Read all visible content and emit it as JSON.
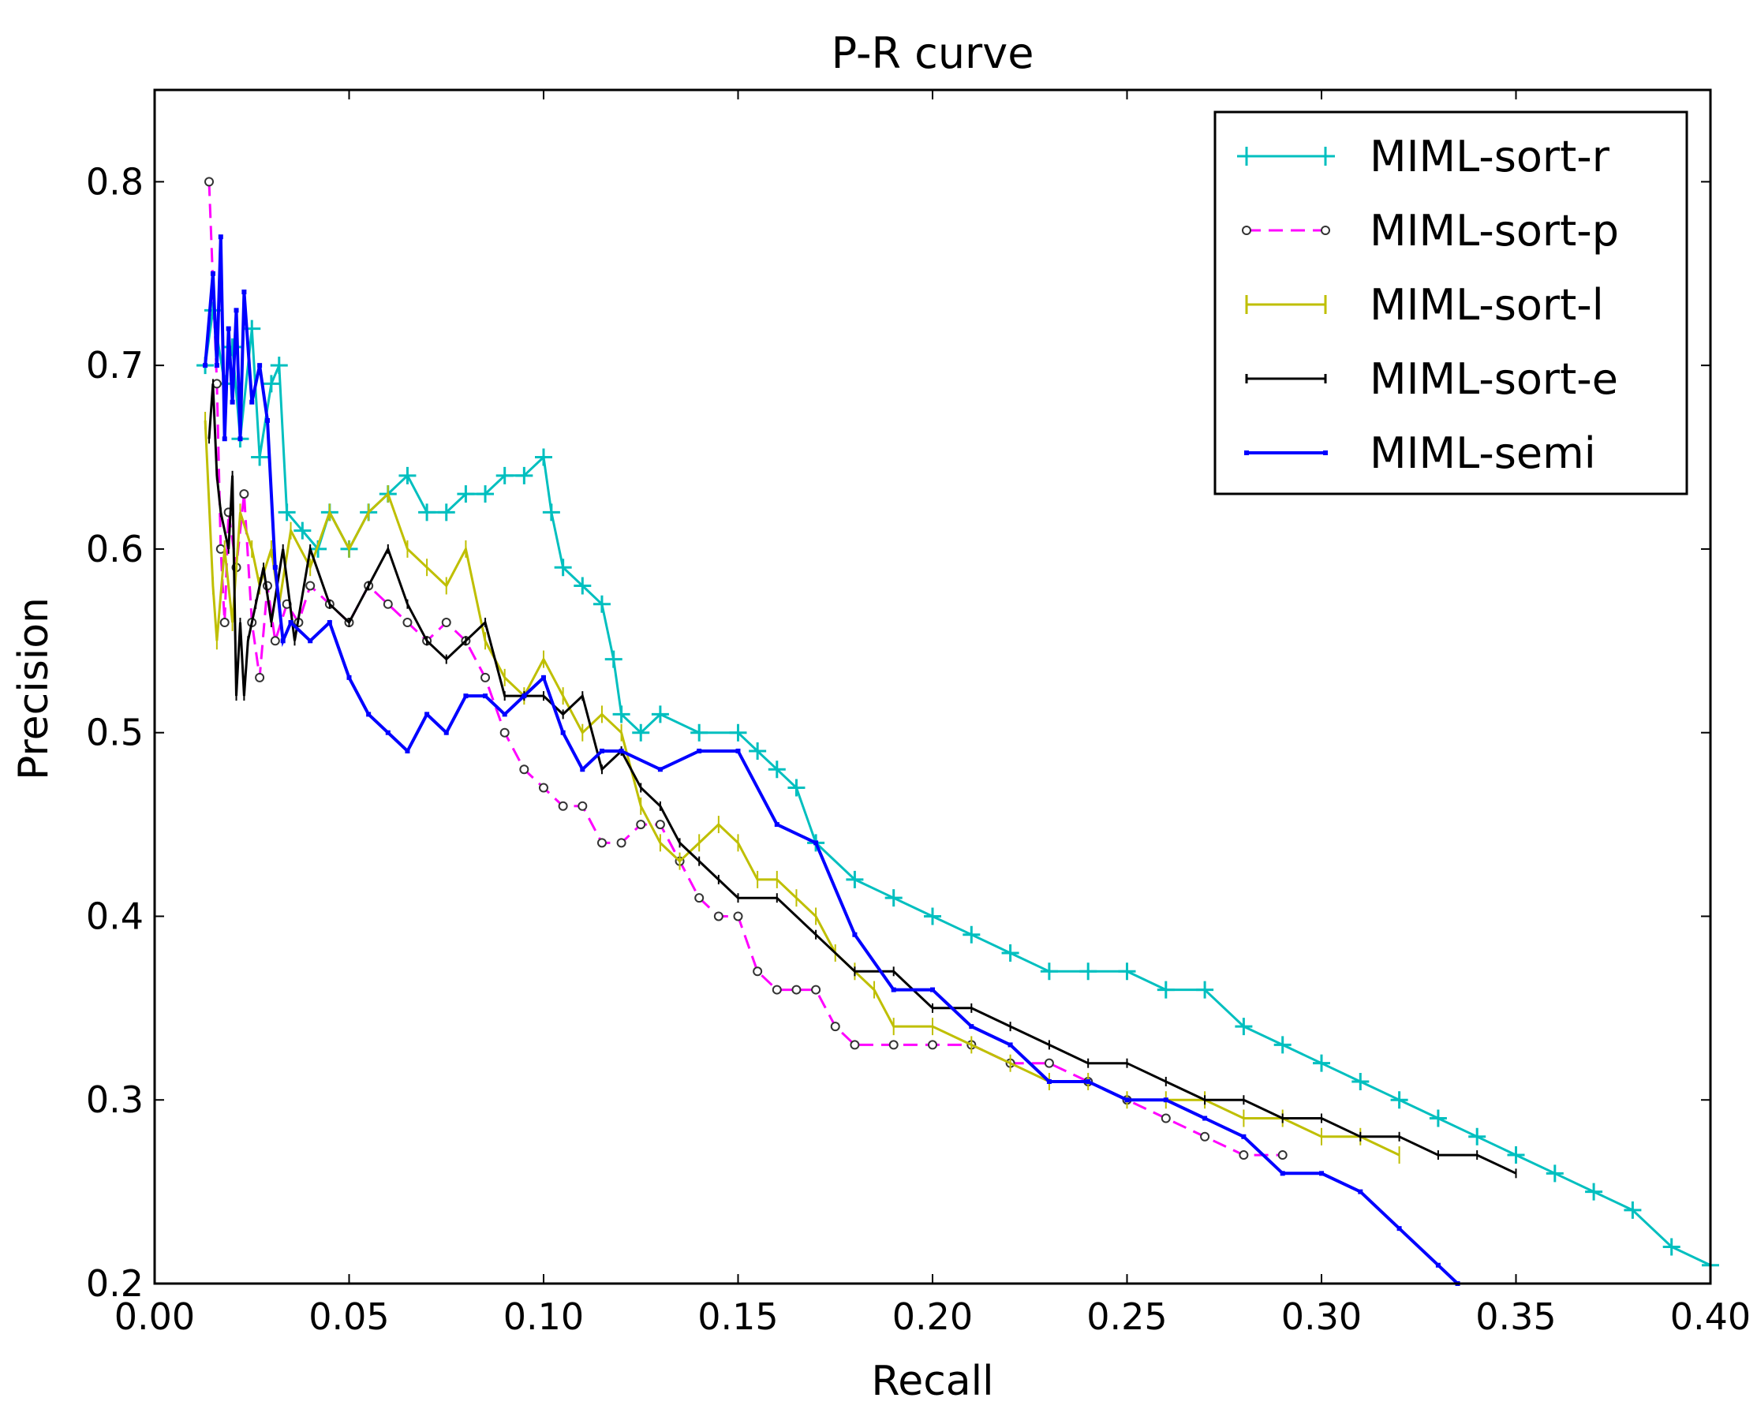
{
  "chart_data": {
    "type": "line",
    "title": "P-R curve",
    "xlabel": "Recall",
    "ylabel": "Precision",
    "xlim": [
      0.0,
      0.4
    ],
    "ylim": [
      0.2,
      0.85
    ],
    "grid": false,
    "legend_position": "top-right",
    "xticks": [
      0.0,
      0.05,
      0.1,
      0.15,
      0.2,
      0.25,
      0.3,
      0.35,
      0.4
    ],
    "xtick_labels": [
      "0.00",
      "0.05",
      "0.10",
      "0.15",
      "0.20",
      "0.25",
      "0.30",
      "0.35",
      "0.40"
    ],
    "yticks": [
      0.2,
      0.3,
      0.4,
      0.5,
      0.6,
      0.7,
      0.8
    ],
    "ytick_labels": [
      "0.2",
      "0.3",
      "0.4",
      "0.5",
      "0.6",
      "0.7",
      "0.8"
    ],
    "series": [
      {
        "name": "MIML-sort-r",
        "color": "#00bfbf",
        "marker": "plus",
        "dash": "solid",
        "x": [
          0.013,
          0.015,
          0.018,
          0.02,
          0.022,
          0.025,
          0.027,
          0.03,
          0.032,
          0.034,
          0.038,
          0.042,
          0.045,
          0.05,
          0.055,
          0.06,
          0.065,
          0.07,
          0.075,
          0.08,
          0.085,
          0.09,
          0.095,
          0.1,
          0.102,
          0.105,
          0.11,
          0.115,
          0.118,
          0.12,
          0.125,
          0.13,
          0.14,
          0.15,
          0.155,
          0.16,
          0.165,
          0.17,
          0.18,
          0.19,
          0.2,
          0.21,
          0.22,
          0.23,
          0.24,
          0.25,
          0.26,
          0.27,
          0.28,
          0.29,
          0.3,
          0.31,
          0.32,
          0.33,
          0.34,
          0.35,
          0.36,
          0.37,
          0.38,
          0.39,
          0.4
        ],
        "y": [
          0.7,
          0.73,
          0.69,
          0.71,
          0.66,
          0.72,
          0.65,
          0.69,
          0.7,
          0.62,
          0.61,
          0.6,
          0.62,
          0.6,
          0.62,
          0.63,
          0.64,
          0.62,
          0.62,
          0.63,
          0.63,
          0.64,
          0.64,
          0.65,
          0.62,
          0.59,
          0.58,
          0.57,
          0.54,
          0.51,
          0.5,
          0.51,
          0.5,
          0.5,
          0.49,
          0.48,
          0.47,
          0.44,
          0.42,
          0.41,
          0.4,
          0.39,
          0.38,
          0.37,
          0.37,
          0.37,
          0.36,
          0.36,
          0.34,
          0.33,
          0.32,
          0.31,
          0.3,
          0.29,
          0.28,
          0.27,
          0.26,
          0.25,
          0.24,
          0.22,
          0.21
        ]
      },
      {
        "name": "MIML-sort-p",
        "color": "#ff00ff",
        "marker": "circle",
        "dash": "dashed",
        "x": [
          0.014,
          0.016,
          0.017,
          0.018,
          0.019,
          0.021,
          0.023,
          0.025,
          0.027,
          0.029,
          0.031,
          0.034,
          0.037,
          0.04,
          0.045,
          0.05,
          0.055,
          0.06,
          0.065,
          0.07,
          0.075,
          0.08,
          0.085,
          0.09,
          0.095,
          0.1,
          0.105,
          0.11,
          0.115,
          0.12,
          0.125,
          0.13,
          0.135,
          0.14,
          0.145,
          0.15,
          0.155,
          0.16,
          0.165,
          0.17,
          0.175,
          0.18,
          0.19,
          0.2,
          0.21,
          0.22,
          0.23,
          0.24,
          0.25,
          0.26,
          0.27,
          0.28,
          0.29
        ],
        "y": [
          0.8,
          0.69,
          0.6,
          0.56,
          0.62,
          0.59,
          0.63,
          0.56,
          0.53,
          0.58,
          0.55,
          0.57,
          0.56,
          0.58,
          0.57,
          0.56,
          0.58,
          0.57,
          0.56,
          0.55,
          0.56,
          0.55,
          0.53,
          0.5,
          0.48,
          0.47,
          0.46,
          0.46,
          0.44,
          0.44,
          0.45,
          0.45,
          0.43,
          0.41,
          0.4,
          0.4,
          0.37,
          0.36,
          0.36,
          0.36,
          0.34,
          0.33,
          0.33,
          0.33,
          0.33,
          0.32,
          0.32,
          0.31,
          0.3,
          0.29,
          0.28,
          0.27,
          0.27
        ]
      },
      {
        "name": "MIML-sort-l",
        "color": "#bfbf00",
        "marker": "vline",
        "dash": "solid",
        "x": [
          0.013,
          0.015,
          0.016,
          0.018,
          0.02,
          0.022,
          0.025,
          0.027,
          0.03,
          0.032,
          0.035,
          0.04,
          0.045,
          0.05,
          0.055,
          0.06,
          0.065,
          0.07,
          0.075,
          0.08,
          0.085,
          0.09,
          0.095,
          0.1,
          0.105,
          0.11,
          0.115,
          0.12,
          0.125,
          0.13,
          0.135,
          0.14,
          0.145,
          0.15,
          0.155,
          0.16,
          0.165,
          0.17,
          0.175,
          0.18,
          0.185,
          0.19,
          0.2,
          0.21,
          0.22,
          0.23,
          0.24,
          0.25,
          0.26,
          0.27,
          0.28,
          0.29,
          0.3,
          0.31,
          0.32
        ],
        "y": [
          0.67,
          0.58,
          0.55,
          0.6,
          0.56,
          0.62,
          0.6,
          0.58,
          0.6,
          0.57,
          0.61,
          0.59,
          0.62,
          0.6,
          0.62,
          0.63,
          0.6,
          0.59,
          0.58,
          0.6,
          0.55,
          0.53,
          0.52,
          0.54,
          0.52,
          0.5,
          0.51,
          0.5,
          0.46,
          0.44,
          0.43,
          0.44,
          0.45,
          0.44,
          0.42,
          0.42,
          0.41,
          0.4,
          0.38,
          0.37,
          0.36,
          0.34,
          0.34,
          0.33,
          0.32,
          0.31,
          0.31,
          0.3,
          0.3,
          0.3,
          0.29,
          0.29,
          0.28,
          0.28,
          0.27
        ]
      },
      {
        "name": "MIML-sort-e",
        "color": "#000000",
        "marker": "tick",
        "dash": "solid",
        "x": [
          0.014,
          0.015,
          0.016,
          0.017,
          0.019,
          0.02,
          0.021,
          0.022,
          0.023,
          0.024,
          0.026,
          0.028,
          0.03,
          0.033,
          0.036,
          0.04,
          0.045,
          0.05,
          0.055,
          0.06,
          0.065,
          0.07,
          0.075,
          0.08,
          0.085,
          0.09,
          0.095,
          0.1,
          0.105,
          0.11,
          0.115,
          0.12,
          0.125,
          0.13,
          0.135,
          0.14,
          0.145,
          0.15,
          0.16,
          0.17,
          0.18,
          0.19,
          0.2,
          0.21,
          0.22,
          0.23,
          0.24,
          0.25,
          0.26,
          0.27,
          0.28,
          0.29,
          0.3,
          0.31,
          0.32,
          0.33,
          0.34,
          0.35
        ],
        "y": [
          0.66,
          0.69,
          0.64,
          0.62,
          0.6,
          0.64,
          0.52,
          0.56,
          0.52,
          0.55,
          0.57,
          0.59,
          0.56,
          0.6,
          0.55,
          0.6,
          0.57,
          0.56,
          0.58,
          0.6,
          0.57,
          0.55,
          0.54,
          0.55,
          0.56,
          0.52,
          0.52,
          0.52,
          0.51,
          0.52,
          0.48,
          0.49,
          0.47,
          0.46,
          0.44,
          0.43,
          0.42,
          0.41,
          0.41,
          0.39,
          0.37,
          0.37,
          0.35,
          0.35,
          0.34,
          0.33,
          0.32,
          0.32,
          0.31,
          0.3,
          0.3,
          0.29,
          0.29,
          0.28,
          0.28,
          0.27,
          0.27,
          0.26
        ]
      },
      {
        "name": "MIML-semi",
        "color": "#0000ff",
        "marker": "thick",
        "dash": "solid",
        "x": [
          0.013,
          0.015,
          0.016,
          0.017,
          0.018,
          0.019,
          0.02,
          0.021,
          0.022,
          0.023,
          0.025,
          0.027,
          0.029,
          0.031,
          0.033,
          0.035,
          0.04,
          0.045,
          0.05,
          0.055,
          0.06,
          0.065,
          0.07,
          0.075,
          0.08,
          0.085,
          0.09,
          0.095,
          0.1,
          0.105,
          0.11,
          0.115,
          0.12,
          0.13,
          0.14,
          0.15,
          0.16,
          0.17,
          0.18,
          0.19,
          0.2,
          0.21,
          0.22,
          0.23,
          0.24,
          0.25,
          0.26,
          0.27,
          0.28,
          0.29,
          0.3,
          0.31,
          0.32,
          0.33,
          0.335
        ],
        "y": [
          0.7,
          0.75,
          0.7,
          0.77,
          0.66,
          0.72,
          0.68,
          0.73,
          0.66,
          0.74,
          0.68,
          0.7,
          0.67,
          0.59,
          0.55,
          0.56,
          0.55,
          0.56,
          0.53,
          0.51,
          0.5,
          0.49,
          0.51,
          0.5,
          0.52,
          0.52,
          0.51,
          0.52,
          0.53,
          0.5,
          0.48,
          0.49,
          0.49,
          0.48,
          0.49,
          0.49,
          0.45,
          0.44,
          0.39,
          0.36,
          0.36,
          0.34,
          0.33,
          0.31,
          0.31,
          0.3,
          0.3,
          0.29,
          0.28,
          0.26,
          0.26,
          0.25,
          0.23,
          0.21,
          0.2
        ]
      }
    ]
  }
}
